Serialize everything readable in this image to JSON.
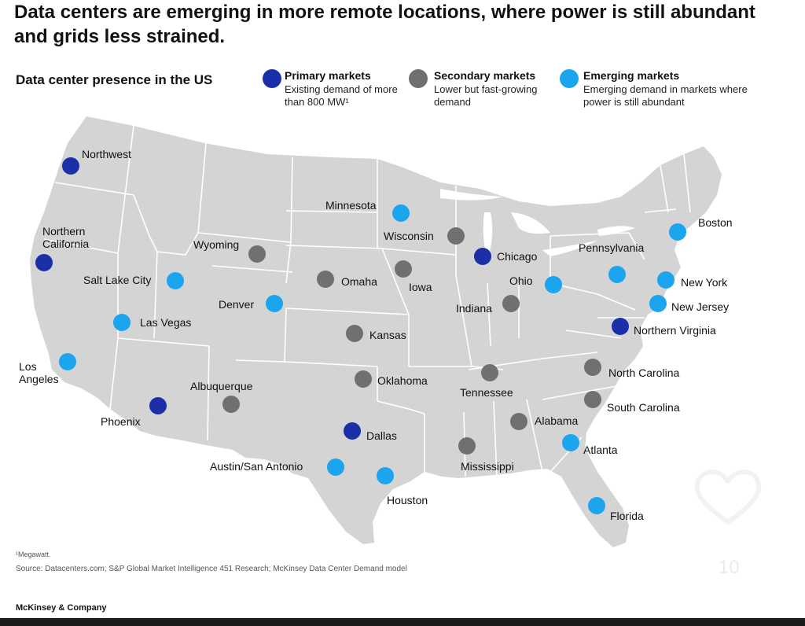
{
  "title": "Data centers are emerging in more remote locations, where power is still abundant and grids less strained.",
  "subtitle": "Data center presence in the US",
  "colors": {
    "primary": "#1a2fa8",
    "secondary": "#707070",
    "emerging": "#1aa5ee",
    "land": "#d4d4d4",
    "border": "#ffffff"
  },
  "legend": {
    "primary": {
      "name": "Primary markets",
      "desc": "Existing demand of more than 800 MW¹"
    },
    "secondary": {
      "name": "Secondary markets",
      "desc": "Lower but fast-growing demand"
    },
    "emerging": {
      "name": "Emerging markets",
      "desc": "Emerging demand in markets where power is still abundant"
    }
  },
  "locations": [
    {
      "name": "Northwest",
      "type": "primary"
    },
    {
      "name": "Northern California",
      "type": "primary"
    },
    {
      "name": "Salt Lake City",
      "type": "emerging"
    },
    {
      "name": "Las Vegas",
      "type": "emerging"
    },
    {
      "name": "Los Angeles",
      "type": "emerging"
    },
    {
      "name": "Phoenix",
      "type": "primary"
    },
    {
      "name": "Wyoming",
      "type": "secondary"
    },
    {
      "name": "Denver",
      "type": "emerging"
    },
    {
      "name": "Albuquerque",
      "type": "secondary"
    },
    {
      "name": "Minnesota",
      "type": "emerging"
    },
    {
      "name": "Wisconsin",
      "type": "secondary"
    },
    {
      "name": "Omaha",
      "type": "secondary"
    },
    {
      "name": "Iowa",
      "type": "secondary"
    },
    {
      "name": "Kansas",
      "type": "secondary"
    },
    {
      "name": "Oklahoma",
      "type": "secondary"
    },
    {
      "name": "Dallas",
      "type": "primary"
    },
    {
      "name": "Austin/San Antonio",
      "type": "emerging"
    },
    {
      "name": "Houston",
      "type": "emerging"
    },
    {
      "name": "Chicago",
      "type": "primary"
    },
    {
      "name": "Indiana",
      "type": "secondary"
    },
    {
      "name": "Ohio",
      "type": "emerging"
    },
    {
      "name": "Tennessee",
      "type": "secondary"
    },
    {
      "name": "Mississippi",
      "type": "secondary"
    },
    {
      "name": "Alabama",
      "type": "secondary"
    },
    {
      "name": "Atlanta",
      "type": "emerging"
    },
    {
      "name": "Florida",
      "type": "emerging"
    },
    {
      "name": "Pennsylvania",
      "type": "emerging"
    },
    {
      "name": "Boston",
      "type": "emerging"
    },
    {
      "name": "New York",
      "type": "emerging"
    },
    {
      "name": "New Jersey",
      "type": "emerging"
    },
    {
      "name": "Northern Virginia",
      "type": "primary"
    },
    {
      "name": "North Carolina",
      "type": "secondary"
    },
    {
      "name": "South Carolina",
      "type": "secondary"
    }
  ],
  "footnote": "¹Megawatt.",
  "source": "Source: Datacenters.com; S&P Global Market Intelligence 451 Research; McKinsey Data Center Demand model",
  "brand": "McKinsey & Company",
  "page_number": "10",
  "heart_icon": "heart-outline-icon"
}
